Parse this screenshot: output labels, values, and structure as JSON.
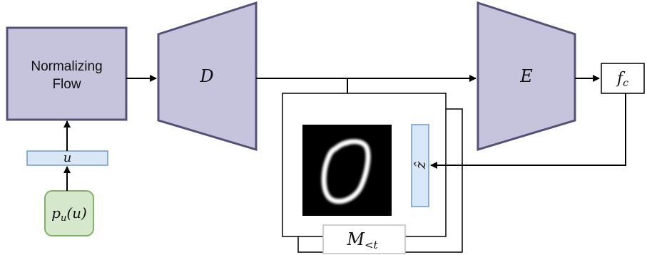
{
  "diagram": {
    "flow_label_line1": "Normalizing",
    "flow_label_line2": "Flow",
    "decoder_label": "D",
    "encoder_label": "E",
    "latent_u_label": "u",
    "prior_label_base": "p",
    "prior_label_sub": "u",
    "prior_label_arg": "(u)",
    "fc_label_base": "f",
    "fc_label_sub": "c",
    "zhat_label": "ẑ",
    "memory_label_base": "M",
    "memory_label_sub": "<t"
  },
  "colors": {
    "purple_fill": "#c6c3dc",
    "purple_stroke": "#55507a",
    "blue_fill": "#d8e6f6",
    "blue_stroke": "#6f98c8",
    "green_fill": "#d5e8cc",
    "green_stroke": "#84b06a"
  },
  "icons": {
    "digit_image": "handwritten-zero-image"
  }
}
